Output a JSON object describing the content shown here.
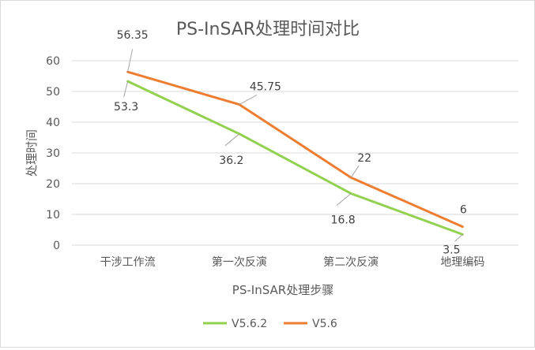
{
  "chart_data": {
    "type": "line",
    "title": "PS-InSAR处理时间对比",
    "xlabel": "PS-InSAR处理步骤",
    "ylabel": "处理时间",
    "categories": [
      "干涉工作流",
      "第一次反演",
      "第二次反演",
      "地理编码"
    ],
    "ylim": [
      0,
      60
    ],
    "yticks": [
      0,
      10,
      20,
      30,
      40,
      50,
      60
    ],
    "grid": true,
    "legend": "bottom",
    "series": [
      {
        "name": "V5.6.2",
        "color": "#92d050",
        "values": [
          53.3,
          36.2,
          16.8,
          3.5
        ],
        "labels": [
          "53.3",
          "36.2",
          "16.8",
          "3.5"
        ]
      },
      {
        "name": "V5.6",
        "color": "#ed7d31",
        "values": [
          56.35,
          45.75,
          22,
          6
        ],
        "labels": [
          "56.35",
          "45.75",
          "22",
          "6"
        ]
      }
    ]
  }
}
